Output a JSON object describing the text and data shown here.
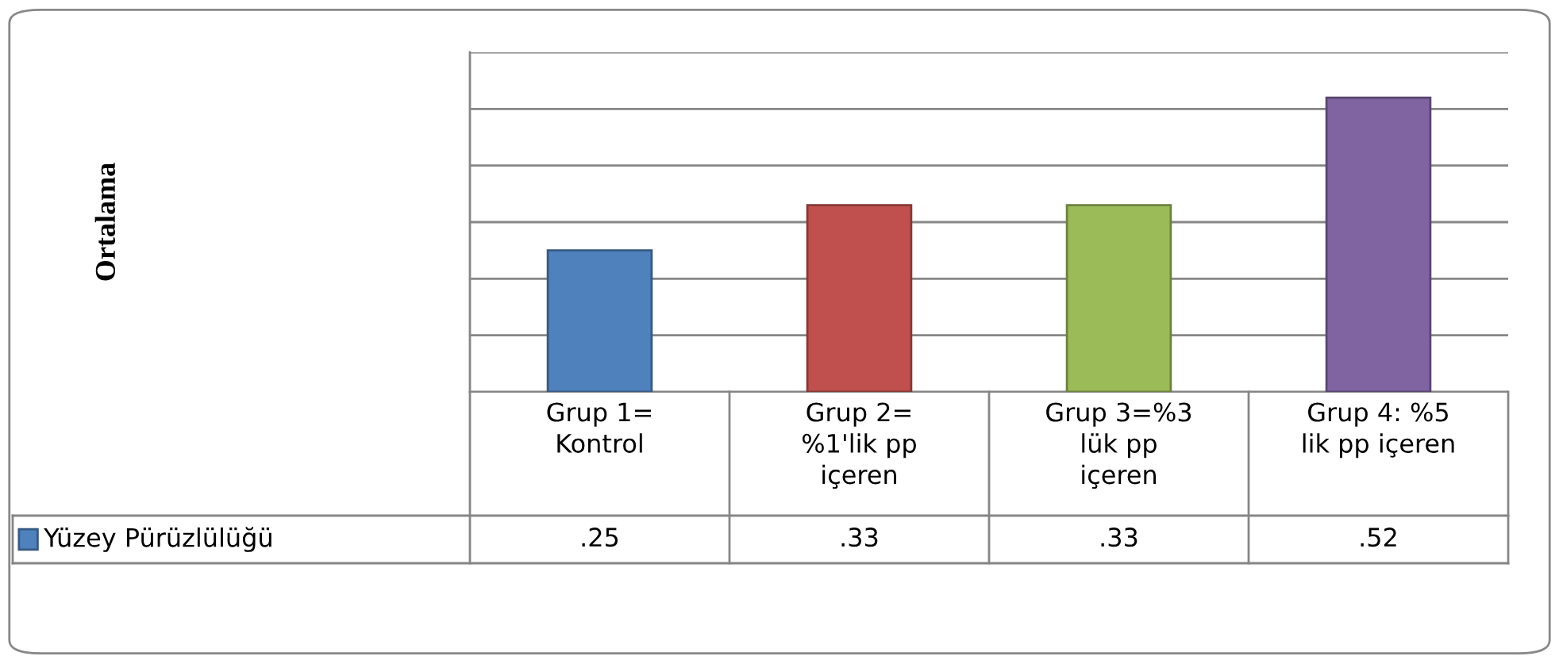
{
  "chart_data": {
    "type": "bar",
    "annotations": [
      "Ortalama"
    ],
    "categories": [
      "Grup 1=\nKontrol",
      "Grup 2=\n%1'lik pp\niçeren",
      "Grup 3=%3\nlük pp\niçeren",
      "Grup 4: %5\nlik pp içeren"
    ],
    "series": [
      {
        "name": "Yüzey Pürüzlülüğü",
        "color": "#4f81bd",
        "colors": [
          "#4f81bd",
          "#c0504d",
          "#9bbb59",
          "#8064a2"
        ],
        "values": [
          0.25,
          0.33,
          0.33,
          0.52
        ],
        "value_labels": [
          ".25",
          ".33",
          ".33",
          ".52"
        ]
      }
    ],
    "ylim": [
      0,
      0.6
    ],
    "yticks": [
      {
        "value": 0,
        "label": null
      },
      {
        "value": 0.1,
        "label": null
      },
      {
        "value": 0.2,
        "label": null
      },
      {
        "value": 0.3,
        "label": null
      },
      {
        "value": 0.4,
        "label": null
      },
      {
        "value": 0.5,
        "label": null
      },
      {
        "value": 0.6,
        "label": null
      }
    ],
    "grid": "y",
    "tick_labels": "x"
  }
}
